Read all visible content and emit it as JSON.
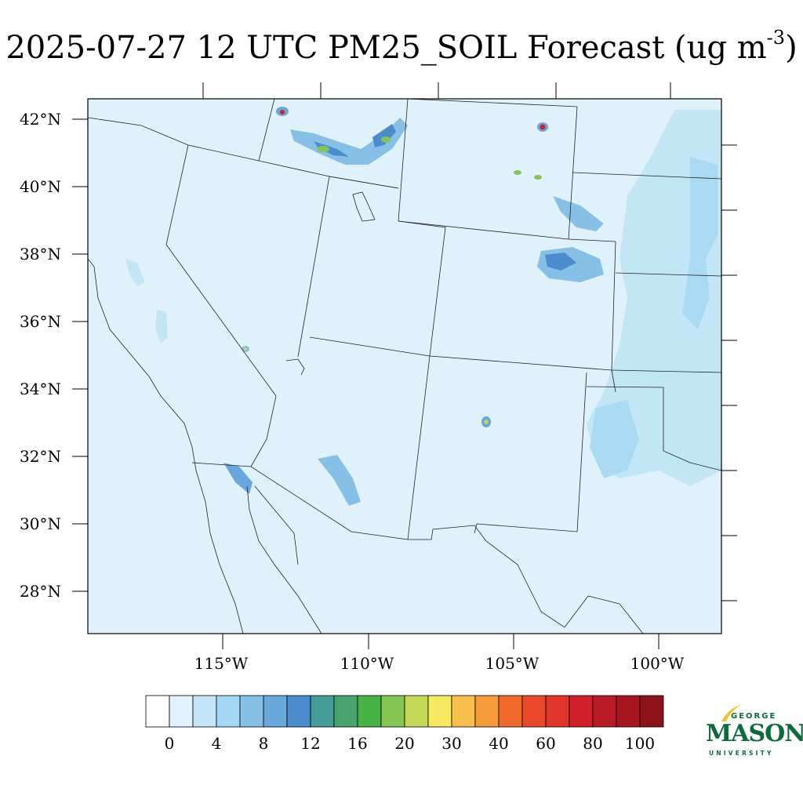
{
  "title": {
    "main": "2025-07-27 12 UTC PM25_SOIL Forecast (ug m",
    "sup": "-3",
    "tail": ")"
  },
  "map": {
    "lat_labels": [
      "42°N",
      "40°N",
      "38°N",
      "36°N",
      "34°N",
      "32°N",
      "30°N",
      "28°N"
    ],
    "lon_labels": [
      "115°W",
      "110°W",
      "105°W",
      "100°W"
    ]
  },
  "colorbar": {
    "labels": [
      "0",
      "4",
      "8",
      "12",
      "16",
      "20",
      "30",
      "40",
      "60",
      "80",
      "100"
    ],
    "colors": [
      "#ffffff",
      "#e0f3fc",
      "#c2e6f7",
      "#a3d7f3",
      "#86c0e6",
      "#68a8dc",
      "#4a8ccc",
      "#469b9b",
      "#47a56d",
      "#47b347",
      "#85c653",
      "#c4d957",
      "#f6e95f",
      "#f8bf4d",
      "#f69b3b",
      "#f26a2a",
      "#e8492a",
      "#e0352a",
      "#d21f2c",
      "#b81b27",
      "#a8171f",
      "#8d1318"
    ]
  },
  "logo": {
    "george": "GEORGE",
    "mason": "MASON",
    "university": "UNIVERSITY",
    "brand_color": "#0b6b3a",
    "accent_color": "#f2c230"
  }
}
